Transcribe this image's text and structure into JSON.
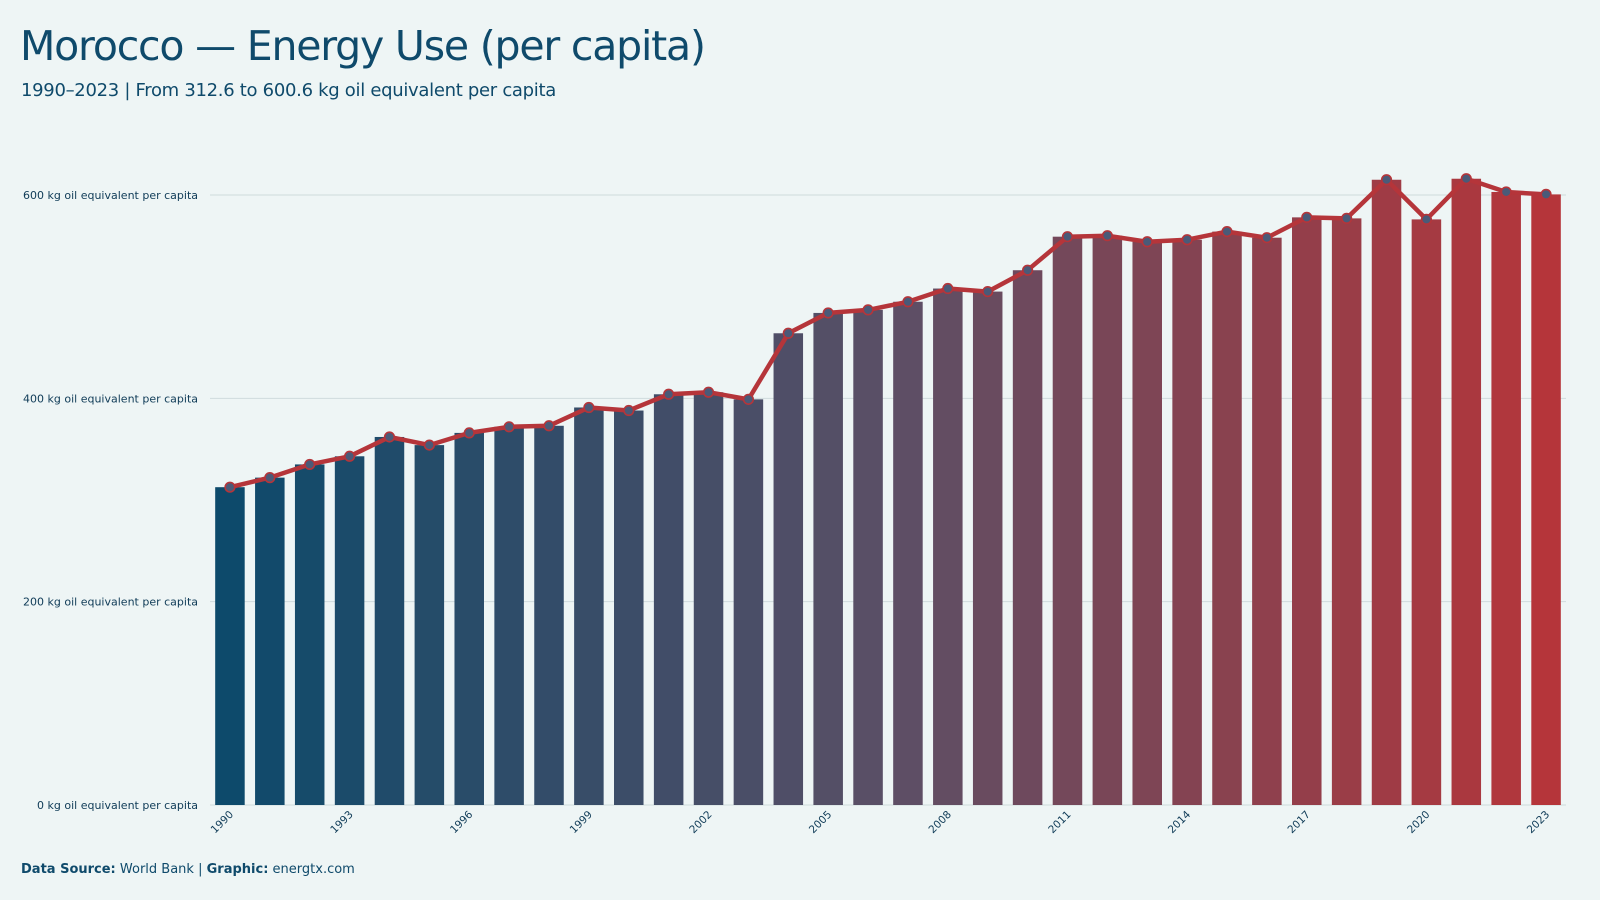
{
  "header": {
    "title": "Morocco — Energy Use (per capita)",
    "subtitle": "1990–2023 | From 312.6 to 600.6 kg oil equivalent per capita"
  },
  "footer": {
    "source_label": "Data Source:",
    "source_value": "World Bank",
    "separator": "|",
    "graphic_label": "Graphic:",
    "graphic_value": "energtx.com"
  },
  "colors": {
    "background": "#eef5f5",
    "bar_start": "#0d4a6b",
    "bar_mid": "#5b4f66",
    "bar_end": "#b5353a",
    "line": "#b5353a",
    "marker_fill": "#4a5a78",
    "grid": "#cfdadc",
    "text": "#0f4a6b"
  },
  "chart_data": {
    "type": "bar",
    "overlay": "line-with-markers",
    "categories": [
      "1990",
      "1991",
      "1992",
      "1993",
      "1994",
      "1995",
      "1996",
      "1997",
      "1998",
      "1999",
      "2000",
      "2001",
      "2002",
      "2003",
      "2004",
      "2005",
      "2006",
      "2007",
      "2008",
      "2009",
      "2010",
      "2011",
      "2012",
      "2013",
      "2014",
      "2015",
      "2016",
      "2017",
      "2018",
      "2019",
      "2020",
      "2021",
      "2022",
      "2023"
    ],
    "values": [
      312.6,
      322,
      335,
      343,
      362,
      354,
      366,
      372,
      373,
      391,
      388,
      404,
      406,
      399,
      464,
      484,
      487,
      495,
      508,
      505,
      526,
      559,
      560,
      554,
      556,
      564,
      558,
      578,
      577,
      615,
      576,
      616,
      603,
      600.6
    ],
    "x_tick_labels": [
      "1990",
      "1993",
      "1996",
      "1999",
      "2002",
      "2005",
      "2008",
      "2011",
      "2014",
      "2017",
      "2020",
      "2023"
    ],
    "y_ticks": [
      0,
      200,
      400,
      600
    ],
    "y_tick_labels": [
      "0 kg oil equivalent per capita",
      "200 kg oil equivalent per capita",
      "400 kg oil equivalent per capita",
      "600 kg oil equivalent per capita"
    ],
    "ylim": [
      0,
      630
    ],
    "grid": "horizontal",
    "xlabel": "",
    "ylabel": ""
  }
}
